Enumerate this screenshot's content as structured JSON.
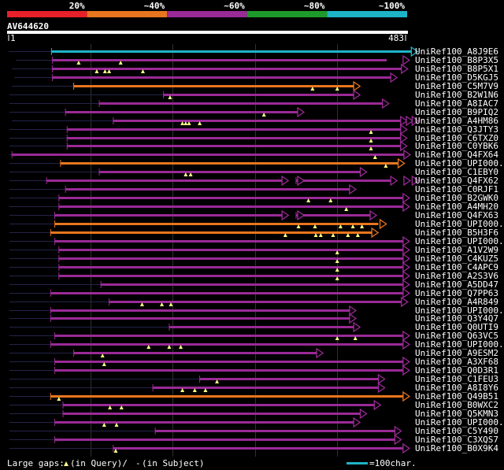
{
  "chart_data": {
    "type": "alignment-overview",
    "query": {
      "name": "AV644620",
      "start": 1,
      "end": 483
    },
    "identity_scale": [
      {
        "label": "20%",
        "color": "#e8202a"
      },
      {
        "label": "~40%",
        "color": "#e8761e"
      },
      {
        "label": "~60%",
        "color": "#9a2a96"
      },
      {
        "label": "~80%",
        "color": "#1e9a2a"
      },
      {
        "label": "~100%",
        "color": "#1eb4c8"
      }
    ],
    "colors": {
      "gap": "#24244a",
      "gap_marker": "#000000",
      "triangle": "#ffff88",
      "scalebar": "#1eb4c8",
      "grid": "#303030"
    },
    "legend": {
      "gaps": "Large gaps:",
      "in_query": "(in Query)/",
      "dash": "-",
      "in_subject": "(in Subject)",
      "scale": "=100char."
    },
    "hits": [
      {
        "name": "UniRef100_A8J9E6",
        "color": "#1eb4c8",
        "gap": [
          1,
          53
        ],
        "segs": [
          [
            53,
            490
          ]
        ],
        "marks": [],
        "heads": [
          490
        ],
        "leftgap": false
      },
      {
        "name": "UniRef100_B8P3X5",
        "color": "#9a2a96",
        "gap": [
          10,
          54
        ],
        "segs": [
          [
            54,
            460
          ]
        ],
        "marks": [
          86,
          137
        ],
        "heads": [
          480
        ],
        "leftgap": false
      },
      {
        "name": "UniRef100_B8P5X1",
        "color": "#9a2a96",
        "gap": [
          5,
          54
        ],
        "segs": [
          [
            54,
            478
          ]
        ],
        "marks": [
          108,
          118,
          123,
          164
        ],
        "heads": [
          478
        ],
        "leftgap": false
      },
      {
        "name": "UniRef100_D5KGJ5",
        "color": "#9a2a96",
        "gap": [
          8,
          54
        ],
        "segs": [
          [
            54,
            465
          ]
        ],
        "marks": [],
        "heads": [
          465
        ],
        "leftgap": false
      },
      {
        "name": "UniRef100_C5M7V9",
        "color": "#e8761e",
        "gap": [
          5,
          80
        ],
        "segs": [
          [
            80,
            420
          ]
        ],
        "marks": [
          370,
          400
        ],
        "heads": [
          420
        ],
        "leftgap": false
      },
      {
        "name": "UniRef100_B2W1N6",
        "color": "#9a2a96",
        "gap": [
          2,
          189
        ],
        "segs": [
          [
            189,
            420
          ]
        ],
        "marks": [
          197
        ],
        "heads": [
          420
        ],
        "leftgap": false
      },
      {
        "name": "UniRef100_A8IAC7",
        "color": "#9a2a96",
        "gap": [
          2,
          111
        ],
        "segs": [
          [
            111,
            455
          ]
        ],
        "marks": [],
        "heads": [
          455
        ],
        "leftgap": false
      },
      {
        "name": "UniRef100_B9PIQ2",
        "color": "#9a2a96",
        "gap": [
          2,
          70
        ],
        "segs": [
          [
            70,
            352
          ]
        ],
        "marks": [
          311
        ],
        "heads": [
          352
        ],
        "leftgap": false
      },
      {
        "name": "UniRef100_A4HM86",
        "color": "#9a2a96",
        "gap": [
          5,
          128
        ],
        "segs": [
          [
            128,
            477
          ]
        ],
        "marks": [
          212,
          216,
          220,
          233
        ],
        "heads": [
          477,
          484,
          491
        ],
        "leftgap": false
      },
      {
        "name": "UniRef100_Q3JTY3",
        "color": "#9a2a96",
        "gap": [
          2,
          72
        ],
        "segs": [
          [
            72,
            477
          ]
        ],
        "marks": [
          441
        ],
        "heads": [
          477
        ],
        "leftgap": false
      },
      {
        "name": "UniRef100_C6TXZ0",
        "color": "#9a2a96",
        "gap": [
          2,
          72
        ],
        "segs": [
          [
            72,
            477
          ]
        ],
        "marks": [
          441
        ],
        "heads": [
          477
        ],
        "leftgap": false
      },
      {
        "name": "UniRef100_C0YBK6",
        "color": "#9a2a96",
        "gap": [
          2,
          72
        ],
        "segs": [
          [
            72,
            477
          ]
        ],
        "marks": [
          441
        ],
        "heads": [
          477
        ],
        "leftgap": false
      },
      {
        "name": "UniRef100_Q4FX64",
        "color": "#9a2a96",
        "gap": [
          2,
          5
        ],
        "segs": [
          [
            5,
            481
          ]
        ],
        "marks": [
          446
        ],
        "heads": [
          481
        ],
        "leftgap": false
      },
      {
        "name": "UniRef100_UPI000...",
        "color": "#e8761e",
        "gap": [
          2,
          64
        ],
        "segs": [
          [
            64,
            474
          ]
        ],
        "marks": [
          459
        ],
        "heads": [
          474
        ],
        "leftgap": false
      },
      {
        "name": "UniRef100_C1EBY0",
        "color": "#9a2a96",
        "gap": [
          2,
          111
        ],
        "segs": [
          [
            111,
            428
          ]
        ],
        "marks": [
          216,
          222
        ],
        "heads": [
          428
        ],
        "leftgap": false
      },
      {
        "name": "UniRef100_Q4FX62",
        "color": "#9a2a96",
        "gap": [
          2,
          47
        ],
        "segs": [
          [
            47,
            333
          ],
          [
            350,
            465
          ]
        ],
        "marks": [],
        "heads": [
          333,
          352,
          465,
          481,
          491
        ],
        "leftgap": false
      },
      {
        "name": "UniRef100_C0RJF1",
        "color": "#9a2a96",
        "gap": [
          2,
          70
        ],
        "segs": [
          [
            70,
            415
          ]
        ],
        "marks": [],
        "heads": [
          415
        ],
        "leftgap": false
      },
      {
        "name": "UniRef100_B2GWK0",
        "color": "#9a2a96",
        "gap": [
          2,
          62
        ],
        "segs": [
          [
            62,
            480
          ]
        ],
        "marks": [
          365,
          392
        ],
        "heads": [
          480
        ],
        "leftgap": false
      },
      {
        "name": "UniRef100_A4MH20",
        "color": "#9a2a96",
        "gap": [
          2,
          62
        ],
        "segs": [
          [
            62,
            480
          ]
        ],
        "marks": [
          411
        ],
        "heads": [
          480
        ],
        "leftgap": false
      },
      {
        "name": "UniRef100_Q4FX63",
        "color": "#9a2a96",
        "gap": [
          2,
          57
        ],
        "segs": [
          [
            57,
            333
          ],
          [
            350,
            440
          ]
        ],
        "marks": [],
        "heads": [
          333,
          352,
          440
        ],
        "leftgap": false
      },
      {
        "name": "UniRef100_UPI000...",
        "color": "#e8761e",
        "gap": [
          2,
          57
        ],
        "segs": [
          [
            57,
            450
          ]
        ],
        "marks": [
          353,
          373,
          404,
          419,
          430
        ],
        "heads": [
          452
        ],
        "leftgap": false
      },
      {
        "name": "UniRef100_B5H3F6",
        "color": "#e8761e",
        "gap": [
          2,
          52
        ],
        "segs": [
          [
            52,
            442
          ]
        ],
        "marks": [
          337,
          374,
          380,
          395,
          413,
          425
        ],
        "heads": [
          442
        ],
        "leftgap": false
      },
      {
        "name": "UniRef100_UPI000...",
        "color": "#9a2a96",
        "gap": [
          2,
          57
        ],
        "segs": [
          [
            57,
            480
          ]
        ],
        "marks": [],
        "heads": [
          480
        ],
        "leftgap": false
      },
      {
        "name": "UniRef100_A1V2W9",
        "color": "#9a2a96",
        "gap": [
          2,
          62
        ],
        "segs": [
          [
            62,
            480
          ]
        ],
        "marks": [
          400
        ],
        "heads": [
          480
        ],
        "leftgap": false
      },
      {
        "name": "UniRef100_C4KUZ5",
        "color": "#9a2a96",
        "gap": [
          2,
          62
        ],
        "segs": [
          [
            62,
            480
          ]
        ],
        "marks": [
          400
        ],
        "heads": [
          480
        ],
        "leftgap": false
      },
      {
        "name": "UniRef100_C4APC9",
        "color": "#9a2a96",
        "gap": [
          2,
          62
        ],
        "segs": [
          [
            62,
            480
          ]
        ],
        "marks": [
          400
        ],
        "heads": [
          480
        ],
        "leftgap": false
      },
      {
        "name": "UniRef100_A2S3V6",
        "color": "#9a2a96",
        "gap": [
          2,
          62
        ],
        "segs": [
          [
            62,
            480
          ]
        ],
        "marks": [
          400
        ],
        "heads": [
          480
        ],
        "leftgap": false
      },
      {
        "name": "UniRef100_A5DD47",
        "color": "#9a2a96",
        "gap": [
          2,
          113
        ],
        "segs": [
          [
            113,
            480
          ]
        ],
        "marks": [],
        "heads": [
          480
        ],
        "leftgap": false
      },
      {
        "name": "UniRef100_Q7PP63",
        "color": "#9a2a96",
        "gap": [
          2,
          52
        ],
        "segs": [
          [
            52,
            480
          ]
        ],
        "marks": [],
        "heads": [
          480
        ],
        "leftgap": false
      },
      {
        "name": "UniRef100_A4R849",
        "color": "#9a2a96",
        "gap": [
          2,
          123
        ],
        "segs": [
          [
            123,
            478
          ]
        ],
        "marks": [
          163,
          187,
          198
        ],
        "heads": [
          478
        ],
        "leftgap": false
      },
      {
        "name": "UniRef100_UPI000...",
        "color": "#9a2a96",
        "gap": [
          2,
          52
        ],
        "segs": [
          [
            52,
            415
          ]
        ],
        "marks": [],
        "heads": [
          415
        ],
        "leftgap": false
      },
      {
        "name": "UniRef100_Q3Y4Q7",
        "color": "#9a2a96",
        "gap": [
          2,
          52
        ],
        "segs": [
          [
            52,
            415
          ]
        ],
        "marks": [],
        "heads": [
          415
        ],
        "leftgap": false
      },
      {
        "name": "UniRef100_Q0UTI9",
        "color": "#9a2a96",
        "gap": [
          2,
          196
        ],
        "segs": [
          [
            196,
            420
          ]
        ],
        "marks": [],
        "heads": [
          420
        ],
        "leftgap": false
      },
      {
        "name": "UniRef100_Q63VC5",
        "color": "#9a2a96",
        "gap": [
          2,
          57
        ],
        "segs": [
          [
            57,
            480
          ]
        ],
        "marks": [
          400,
          422
        ],
        "heads": [
          480
        ],
        "leftgap": false
      },
      {
        "name": "UniRef100_UPI000...",
        "color": "#9a2a96",
        "gap": [
          2,
          52
        ],
        "segs": [
          [
            52,
            480
          ]
        ],
        "marks": [
          171,
          196,
          210
        ],
        "heads": [
          480
        ],
        "leftgap": false
      },
      {
        "name": "UniRef100_A9ESM2",
        "color": "#9a2a96",
        "gap": [
          2,
          80
        ],
        "segs": [
          [
            80,
            375
          ]
        ],
        "marks": [
          115
        ],
        "heads": [
          375
        ],
        "leftgap": false
      },
      {
        "name": "UniRef100_A3XF68",
        "color": "#9a2a96",
        "gap": [
          2,
          57
        ],
        "segs": [
          [
            57,
            480
          ]
        ],
        "marks": [
          117
        ],
        "heads": [
          480
        ],
        "leftgap": false
      },
      {
        "name": "UniRef100_Q0D3R1",
        "color": "#9a2a96",
        "gap": [
          2,
          57
        ],
        "segs": [
          [
            57,
            480
          ]
        ],
        "marks": [],
        "heads": [
          480
        ],
        "leftgap": false
      },
      {
        "name": "UniRef100_C1FEU3",
        "color": "#9a2a96",
        "gap": [
          2,
          233
        ],
        "segs": [
          [
            233,
            450
          ]
        ],
        "marks": [
          254
        ],
        "heads": [
          450
        ],
        "leftgap": false
      },
      {
        "name": "UniRef100_A8I8Y6",
        "color": "#9a2a96",
        "gap": [
          2,
          176
        ],
        "segs": [
          [
            176,
            450
          ]
        ],
        "marks": [
          212,
          227,
          240
        ],
        "heads": [
          450
        ],
        "leftgap": false
      },
      {
        "name": "UniRef100_Q49B51",
        "color": "#e8761e",
        "gap": [
          2,
          52
        ],
        "segs": [
          [
            52,
            480
          ]
        ],
        "marks": [
          62
        ],
        "heads": [
          480
        ],
        "leftgap": false
      },
      {
        "name": "UniRef100_B0WXC2",
        "color": "#9a2a96",
        "gap": [
          2,
          67
        ],
        "segs": [
          [
            67,
            445
          ]
        ],
        "marks": [
          124,
          138
        ],
        "heads": [
          445
        ],
        "leftgap": false
      },
      {
        "name": "UniRef100_Q5KMN3",
        "color": "#9a2a96",
        "gap": [
          2,
          67
        ],
        "segs": [
          [
            67,
            428
          ]
        ],
        "marks": [],
        "heads": [
          428
        ],
        "leftgap": false
      },
      {
        "name": "UniRef100_UPI000...",
        "color": "#9a2a96",
        "gap": [
          2,
          57
        ],
        "segs": [
          [
            57,
            420
          ]
        ],
        "marks": [
          117,
          132
        ],
        "heads": [
          420
        ],
        "leftgap": false
      },
      {
        "name": "UniRef100_C5Y490",
        "color": "#9a2a96",
        "gap": [
          2,
          179
        ],
        "segs": [
          [
            179,
            470
          ]
        ],
        "marks": [],
        "heads": [
          470
        ],
        "leftgap": false
      },
      {
        "name": "UniRef100_C3XQS7",
        "color": "#9a2a96",
        "gap": [
          2,
          57
        ],
        "segs": [
          [
            57,
            470
          ]
        ],
        "marks": [],
        "heads": [
          470
        ],
        "leftgap": false
      },
      {
        "name": "UniRef100_B0X9K4",
        "color": "#9a2a96",
        "gap": [
          2,
          128
        ],
        "segs": [
          [
            128,
            480
          ]
        ],
        "marks": [
          131
        ],
        "heads": [
          480
        ],
        "leftgap": false
      }
    ]
  }
}
